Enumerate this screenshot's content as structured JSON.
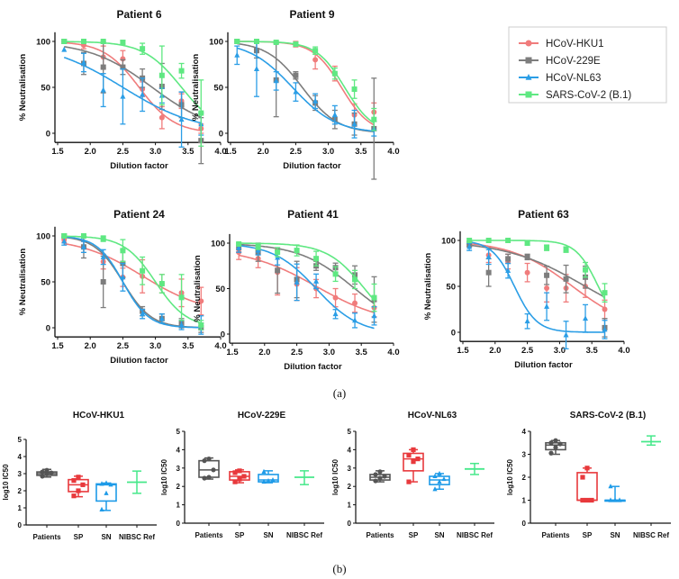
{
  "panel_labels": [
    "(a)",
    "(b)"
  ],
  "legend": [
    {
      "name": "HCoV-HKU1",
      "color": "#f07c7c",
      "marker": "circle"
    },
    {
      "name": "HCoV-229E",
      "color": "#7d7d7d",
      "marker": "square"
    },
    {
      "name": "HCoV-NL63",
      "color": "#2b9ee6",
      "marker": "triangle"
    },
    {
      "name": "SARS-CoV-2 (B.1)",
      "color": "#5fe882",
      "marker": "square"
    }
  ],
  "chart_data": [
    {
      "type": "line",
      "title": "Patient 6",
      "xlabel": "Dilution factor",
      "ylabel": "% Neutralisation",
      "xlim": [
        1.5,
        4.0
      ],
      "ylim": [
        -10,
        110
      ],
      "xticks": [
        "1.5",
        "2.0",
        "2.5",
        "3.0",
        "3.5",
        "4.0"
      ],
      "yticks": [
        "0",
        "50",
        "100"
      ],
      "x": [
        1.6,
        1.9,
        2.2,
        2.5,
        2.8,
        3.1,
        3.4,
        3.7
      ],
      "series": [
        {
          "name": "HCoV-HKU1",
          "values": [
            100,
            96,
            83,
            81,
            48,
            17,
            35,
            5
          ],
          "err": [
            0,
            4,
            12,
            9,
            8,
            12,
            8,
            5
          ],
          "fit": {
            "top": 100,
            "bottom": 0,
            "logIC50": 2.75,
            "hill": 1.6
          }
        },
        {
          "name": "HCoV-229E",
          "values": [
            100,
            76,
            72,
            72,
            60,
            51,
            31,
            -8
          ],
          "err": [
            0,
            12,
            28,
            8,
            10,
            25,
            14,
            25
          ],
          "fit": {
            "top": 100,
            "bottom": 0,
            "logIC50": 2.95,
            "hill": 0.9
          }
        },
        {
          "name": "HCoV-NL63",
          "values": [
            91,
            77,
            47,
            40,
            42,
            41,
            15,
            10
          ],
          "err": [
            0,
            10,
            18,
            30,
            18,
            8,
            30,
            12
          ],
          "fit": {
            "top": 100,
            "bottom": 0,
            "logIC50": 2.5,
            "hill": 0.75
          }
        },
        {
          "name": "SARS-CoV-2 (B.1)",
          "values": [
            100,
            100,
            100,
            99,
            92,
            63,
            68,
            22
          ],
          "err": [
            0,
            0,
            0,
            2,
            6,
            32,
            8,
            36
          ],
          "fit": {
            "top": 100,
            "bottom": 0,
            "logIC50": 3.4,
            "hill": 1.5
          }
        }
      ]
    },
    {
      "type": "line",
      "title": "Patient 9",
      "xlabel": "Dilution factor",
      "ylabel": "% Neutralisation",
      "xlim": [
        1.5,
        4.0
      ],
      "ylim": [
        -10,
        110
      ],
      "xticks": [
        "1.5",
        "2.0",
        "2.5",
        "3.0",
        "3.5",
        "4.0"
      ],
      "yticks": [
        "0",
        "50",
        "100"
      ],
      "x": [
        1.6,
        1.9,
        2.2,
        2.5,
        2.8,
        3.1,
        3.4,
        3.7
      ],
      "series": [
        {
          "name": "HCoV-HKU1",
          "values": [
            100,
            100,
            99,
            97,
            80,
            65,
            20,
            23
          ],
          "err": [
            0,
            0,
            1,
            3,
            10,
            8,
            12,
            10
          ],
          "fit": {
            "top": 100,
            "bottom": 0,
            "logIC50": 3.2,
            "hill": 2
          }
        },
        {
          "name": "HCoV-229E",
          "values": [
            100,
            90,
            58,
            63,
            33,
            15,
            10,
            5
          ],
          "err": [
            0,
            8,
            40,
            4,
            8,
            10,
            12,
            55
          ],
          "fit": {
            "top": 100,
            "bottom": 0,
            "logIC50": 2.6,
            "hill": 1.6
          }
        },
        {
          "name": "HCoV-NL63",
          "values": [
            85,
            70,
            57,
            45,
            35,
            20,
            10,
            5
          ],
          "err": [
            10,
            30,
            10,
            10,
            8,
            10,
            15,
            8
          ],
          "fit": {
            "top": 100,
            "bottom": 0,
            "logIC50": 2.45,
            "hill": 1.3
          }
        },
        {
          "name": "SARS-CoV-2 (B.1)",
          "values": [
            100,
            100,
            99,
            97,
            90,
            65,
            48,
            15
          ],
          "err": [
            0,
            0,
            1,
            2,
            4,
            6,
            10,
            12
          ],
          "fit": {
            "top": 100,
            "bottom": 0,
            "logIC50": 3.25,
            "hill": 2
          }
        }
      ]
    },
    {
      "type": "line",
      "title": "Patient 24",
      "xlabel": "Dilution factor",
      "ylabel": "% Neutralisation",
      "xlim": [
        1.5,
        4.0
      ],
      "ylim": [
        -10,
        110
      ],
      "xticks": [
        "1.5",
        "2.0",
        "2.5",
        "3.0",
        "3.5",
        "4.0"
      ],
      "yticks": [
        "0",
        "50",
        "100"
      ],
      "x": [
        1.6,
        1.9,
        2.2,
        2.5,
        2.8,
        3.1,
        3.4,
        3.7
      ],
      "series": [
        {
          "name": "HCoV-HKU1",
          "values": [
            96,
            88,
            72,
            55,
            56,
            48,
            38,
            29
          ],
          "err": [
            3,
            6,
            8,
            10,
            18,
            10,
            15,
            15
          ],
          "fit": {
            "top": 98,
            "bottom": 15,
            "logIC50": 2.8,
            "hill": 0.9
          }
        },
        {
          "name": "HCoV-229E",
          "values": [
            100,
            88,
            50,
            70,
            18,
            10,
            5,
            0
          ],
          "err": [
            0,
            12,
            28,
            15,
            5,
            5,
            5,
            5
          ],
          "fit": {
            "top": 100,
            "bottom": 0,
            "logIC50": 2.5,
            "hill": 2
          }
        },
        {
          "name": "HCoV-NL63",
          "values": [
            94,
            88,
            77,
            55,
            15,
            10,
            3,
            3
          ],
          "err": [
            4,
            6,
            8,
            15,
            5,
            5,
            5,
            10
          ],
          "fit": {
            "top": 100,
            "bottom": 0,
            "logIC50": 2.5,
            "hill": 2.2
          }
        },
        {
          "name": "SARS-CoV-2 (B.1)",
          "values": [
            100,
            100,
            97,
            84,
            62,
            48,
            33,
            3
          ],
          "err": [
            0,
            0,
            3,
            12,
            15,
            10,
            25,
            5
          ],
          "fit": {
            "top": 100,
            "bottom": 0,
            "logIC50": 3.0,
            "hill": 1.8
          }
        }
      ]
    },
    {
      "type": "line",
      "title": "Patient 41",
      "xlabel": "Dilution factor",
      "ylabel": "% Neutralisation",
      "xlim": [
        1.5,
        4.0
      ],
      "ylim": [
        -10,
        110
      ],
      "xticks": [
        "1.5",
        "2.0",
        "2.5",
        "3.0",
        "3.5",
        "4.0"
      ],
      "yticks": [
        "0",
        "50",
        "100"
      ],
      "x": [
        1.6,
        1.9,
        2.2,
        2.5,
        2.8,
        3.1,
        3.4,
        3.7
      ],
      "series": [
        {
          "name": "HCoV-HKU1",
          "values": [
            90,
            83,
            68,
            55,
            50,
            40,
            34,
            29
          ],
          "err": [
            8,
            10,
            25,
            18,
            10,
            10,
            10,
            10
          ],
          "fit": {
            "top": 95,
            "bottom": 10,
            "logIC50": 2.8,
            "hill": 0.8
          }
        },
        {
          "name": "HCoV-229E",
          "values": [
            95,
            90,
            70,
            60,
            75,
            73,
            65,
            38
          ],
          "err": [
            5,
            10,
            25,
            20,
            5,
            5,
            10,
            25
          ],
          "fit": {
            "top": 100,
            "bottom": 0,
            "logIC50": 3.4,
            "hill": 1
          }
        },
        {
          "name": "HCoV-NL63",
          "values": [
            95,
            92,
            84,
            57,
            58,
            22,
            15,
            20
          ],
          "err": [
            5,
            5,
            8,
            20,
            8,
            5,
            8,
            10
          ],
          "fit": {
            "top": 100,
            "bottom": 0,
            "logIC50": 2.8,
            "hill": 1.3
          }
        },
        {
          "name": "SARS-CoV-2 (B.1)",
          "values": [
            99,
            96,
            90,
            92,
            83,
            66,
            60,
            40
          ],
          "err": [
            1,
            3,
            5,
            6,
            8,
            8,
            10,
            15
          ],
          "fit": {
            "top": 100,
            "bottom": 0,
            "logIC50": 3.55,
            "hill": 1.5
          }
        }
      ]
    },
    {
      "type": "line",
      "title": "Patient 63",
      "xlabel": "Dilution factor",
      "ylabel": "% Neutralisation",
      "xlim": [
        1.5,
        4.0
      ],
      "ylim": [
        -10,
        110
      ],
      "xticks": [
        "1.5",
        "2.0",
        "2.5",
        "3.0",
        "3.5",
        "4.0"
      ],
      "yticks": [
        "0",
        "50",
        "100"
      ],
      "x": [
        1.6,
        1.9,
        2.2,
        2.5,
        2.8,
        3.1,
        3.4,
        3.7
      ],
      "series": [
        {
          "name": "HCoV-HKU1",
          "values": [
            96,
            84,
            77,
            65,
            48,
            48,
            50,
            25
          ],
          "err": [
            3,
            8,
            8,
            10,
            15,
            15,
            12,
            10
          ],
          "fit": {
            "top": 100,
            "bottom": 0,
            "logIC50": 3.2,
            "hill": 0.9
          }
        },
        {
          "name": "HCoV-229E",
          "values": [
            96,
            65,
            80,
            82,
            62,
            58,
            60,
            5
          ],
          "err": [
            3,
            15,
            5,
            3,
            10,
            15,
            12,
            10
          ],
          "fit": {
            "top": 100,
            "bottom": 0,
            "logIC50": 3.4,
            "hill": 0.7
          }
        },
        {
          "name": "HCoV-NL63",
          "values": [
            93,
            82,
            67,
            12,
            28,
            -3,
            15,
            3
          ],
          "err": [
            4,
            8,
            8,
            8,
            15,
            15,
            15,
            10
          ],
          "fit": {
            "top": 100,
            "bottom": 0,
            "logIC50": 2.3,
            "hill": 2.5
          }
        },
        {
          "name": "SARS-CoV-2 (B.1)",
          "values": [
            100,
            100,
            100,
            97,
            92,
            90,
            68,
            43
          ],
          "err": [
            0,
            0,
            0,
            2,
            3,
            3,
            8,
            10
          ],
          "fit": {
            "top": 100,
            "bottom": 0,
            "logIC50": 3.6,
            "hill": 2.5
          }
        }
      ]
    },
    {
      "type": "box",
      "title": "HCoV-HKU1",
      "ylabel": "log10 IC50",
      "ylim": [
        0,
        5
      ],
      "yticks": [
        "0",
        "1",
        "2",
        "3",
        "4",
        "5"
      ],
      "categories": [
        "Patients",
        "SP",
        "SN",
        "NIBSC Ref"
      ],
      "groups": [
        {
          "min": 2.8,
          "q1": 2.9,
          "median": 3.0,
          "q3": 3.1,
          "max": 3.25,
          "points": [
            2.85,
            3.0,
            3.05,
            3.1,
            3.2
          ]
        },
        {
          "min": 1.65,
          "q1": 1.95,
          "median": 2.35,
          "q3": 2.65,
          "max": 2.85,
          "points": [
            1.7,
            2.0,
            2.35,
            2.6,
            2.8
          ]
        },
        {
          "min": 0.85,
          "q1": 1.4,
          "median": 2.35,
          "q3": 2.4,
          "max": 2.45,
          "points": [
            0.9,
            1.85,
            2.35,
            2.4,
            2.45
          ]
        },
        {
          "min": 1.85,
          "median": 2.5,
          "max": 3.15
        }
      ]
    },
    {
      "type": "box",
      "title": "HCoV-229E",
      "ylabel": "log10 IC50",
      "ylim": [
        0,
        5
      ],
      "yticks": [
        "0",
        "1",
        "2",
        "3",
        "4",
        "5"
      ],
      "categories": [
        "Patients",
        "SP",
        "SN",
        "NIBSC Ref"
      ],
      "groups": [
        {
          "min": 2.4,
          "q1": 2.5,
          "median": 2.9,
          "q3": 3.4,
          "max": 3.55,
          "points": [
            2.45,
            2.5,
            2.9,
            3.4,
            3.5
          ]
        },
        {
          "min": 2.2,
          "q1": 2.35,
          "median": 2.55,
          "q3": 2.8,
          "max": 2.9,
          "points": [
            2.25,
            2.4,
            2.55,
            2.75,
            2.85
          ]
        },
        {
          "min": 2.2,
          "q1": 2.25,
          "median": 2.35,
          "q3": 2.65,
          "max": 2.85,
          "points": [
            2.25,
            2.3,
            2.35,
            2.8
          ]
        },
        {
          "min": 2.1,
          "median": 2.5,
          "max": 2.85
        }
      ]
    },
    {
      "type": "box",
      "title": "HCoV-NL63",
      "ylabel": "log10 IC50",
      "ylim": [
        0,
        5
      ],
      "yticks": [
        "0",
        "1",
        "2",
        "3",
        "4",
        "5"
      ],
      "categories": [
        "Patients",
        "SP",
        "SN",
        "NIBSC Ref"
      ],
      "groups": [
        {
          "min": 2.25,
          "q1": 2.35,
          "median": 2.5,
          "q3": 2.65,
          "max": 2.85,
          "points": [
            2.3,
            2.45,
            2.55,
            2.65,
            2.8
          ]
        },
        {
          "min": 2.25,
          "q1": 2.85,
          "median": 3.5,
          "q3": 3.8,
          "max": 4.0,
          "points": [
            2.25,
            3.35,
            3.5,
            3.7,
            4.0
          ]
        },
        {
          "min": 1.85,
          "q1": 2.1,
          "median": 2.35,
          "q3": 2.55,
          "max": 2.7,
          "points": [
            1.85,
            2.25,
            2.4,
            2.55,
            2.7
          ]
        },
        {
          "min": 2.65,
          "median": 2.95,
          "max": 3.25
        }
      ]
    },
    {
      "type": "box",
      "title": "SARS-CoV-2 (B.1)",
      "ylabel": "log10 IC50",
      "ylim": [
        0,
        4
      ],
      "yticks": [
        "0",
        "1",
        "2",
        "3",
        "4"
      ],
      "categories": [
        "Patients",
        "SP",
        "SN",
        "NIBSC Ref"
      ],
      "groups": [
        {
          "min": 3.0,
          "q1": 3.2,
          "median": 3.4,
          "q3": 3.5,
          "max": 3.6,
          "points": [
            3.05,
            3.3,
            3.45,
            3.5,
            3.6
          ]
        },
        {
          "min": 1.0,
          "q1": 1.0,
          "median": 1.0,
          "q3": 2.2,
          "max": 2.4,
          "points": [
            1,
            1,
            1,
            2,
            2.4
          ]
        },
        {
          "min": 1.0,
          "q1": 1.0,
          "median": 1.0,
          "q3": 1.0,
          "max": 1.6,
          "points": [
            1,
            1,
            1,
            1.6
          ]
        },
        {
          "min": 3.4,
          "median": 3.55,
          "max": 3.8
        }
      ]
    }
  ],
  "box_colors": [
    "#555555",
    "#e8393c",
    "#1e9be8",
    "#46e88a"
  ]
}
